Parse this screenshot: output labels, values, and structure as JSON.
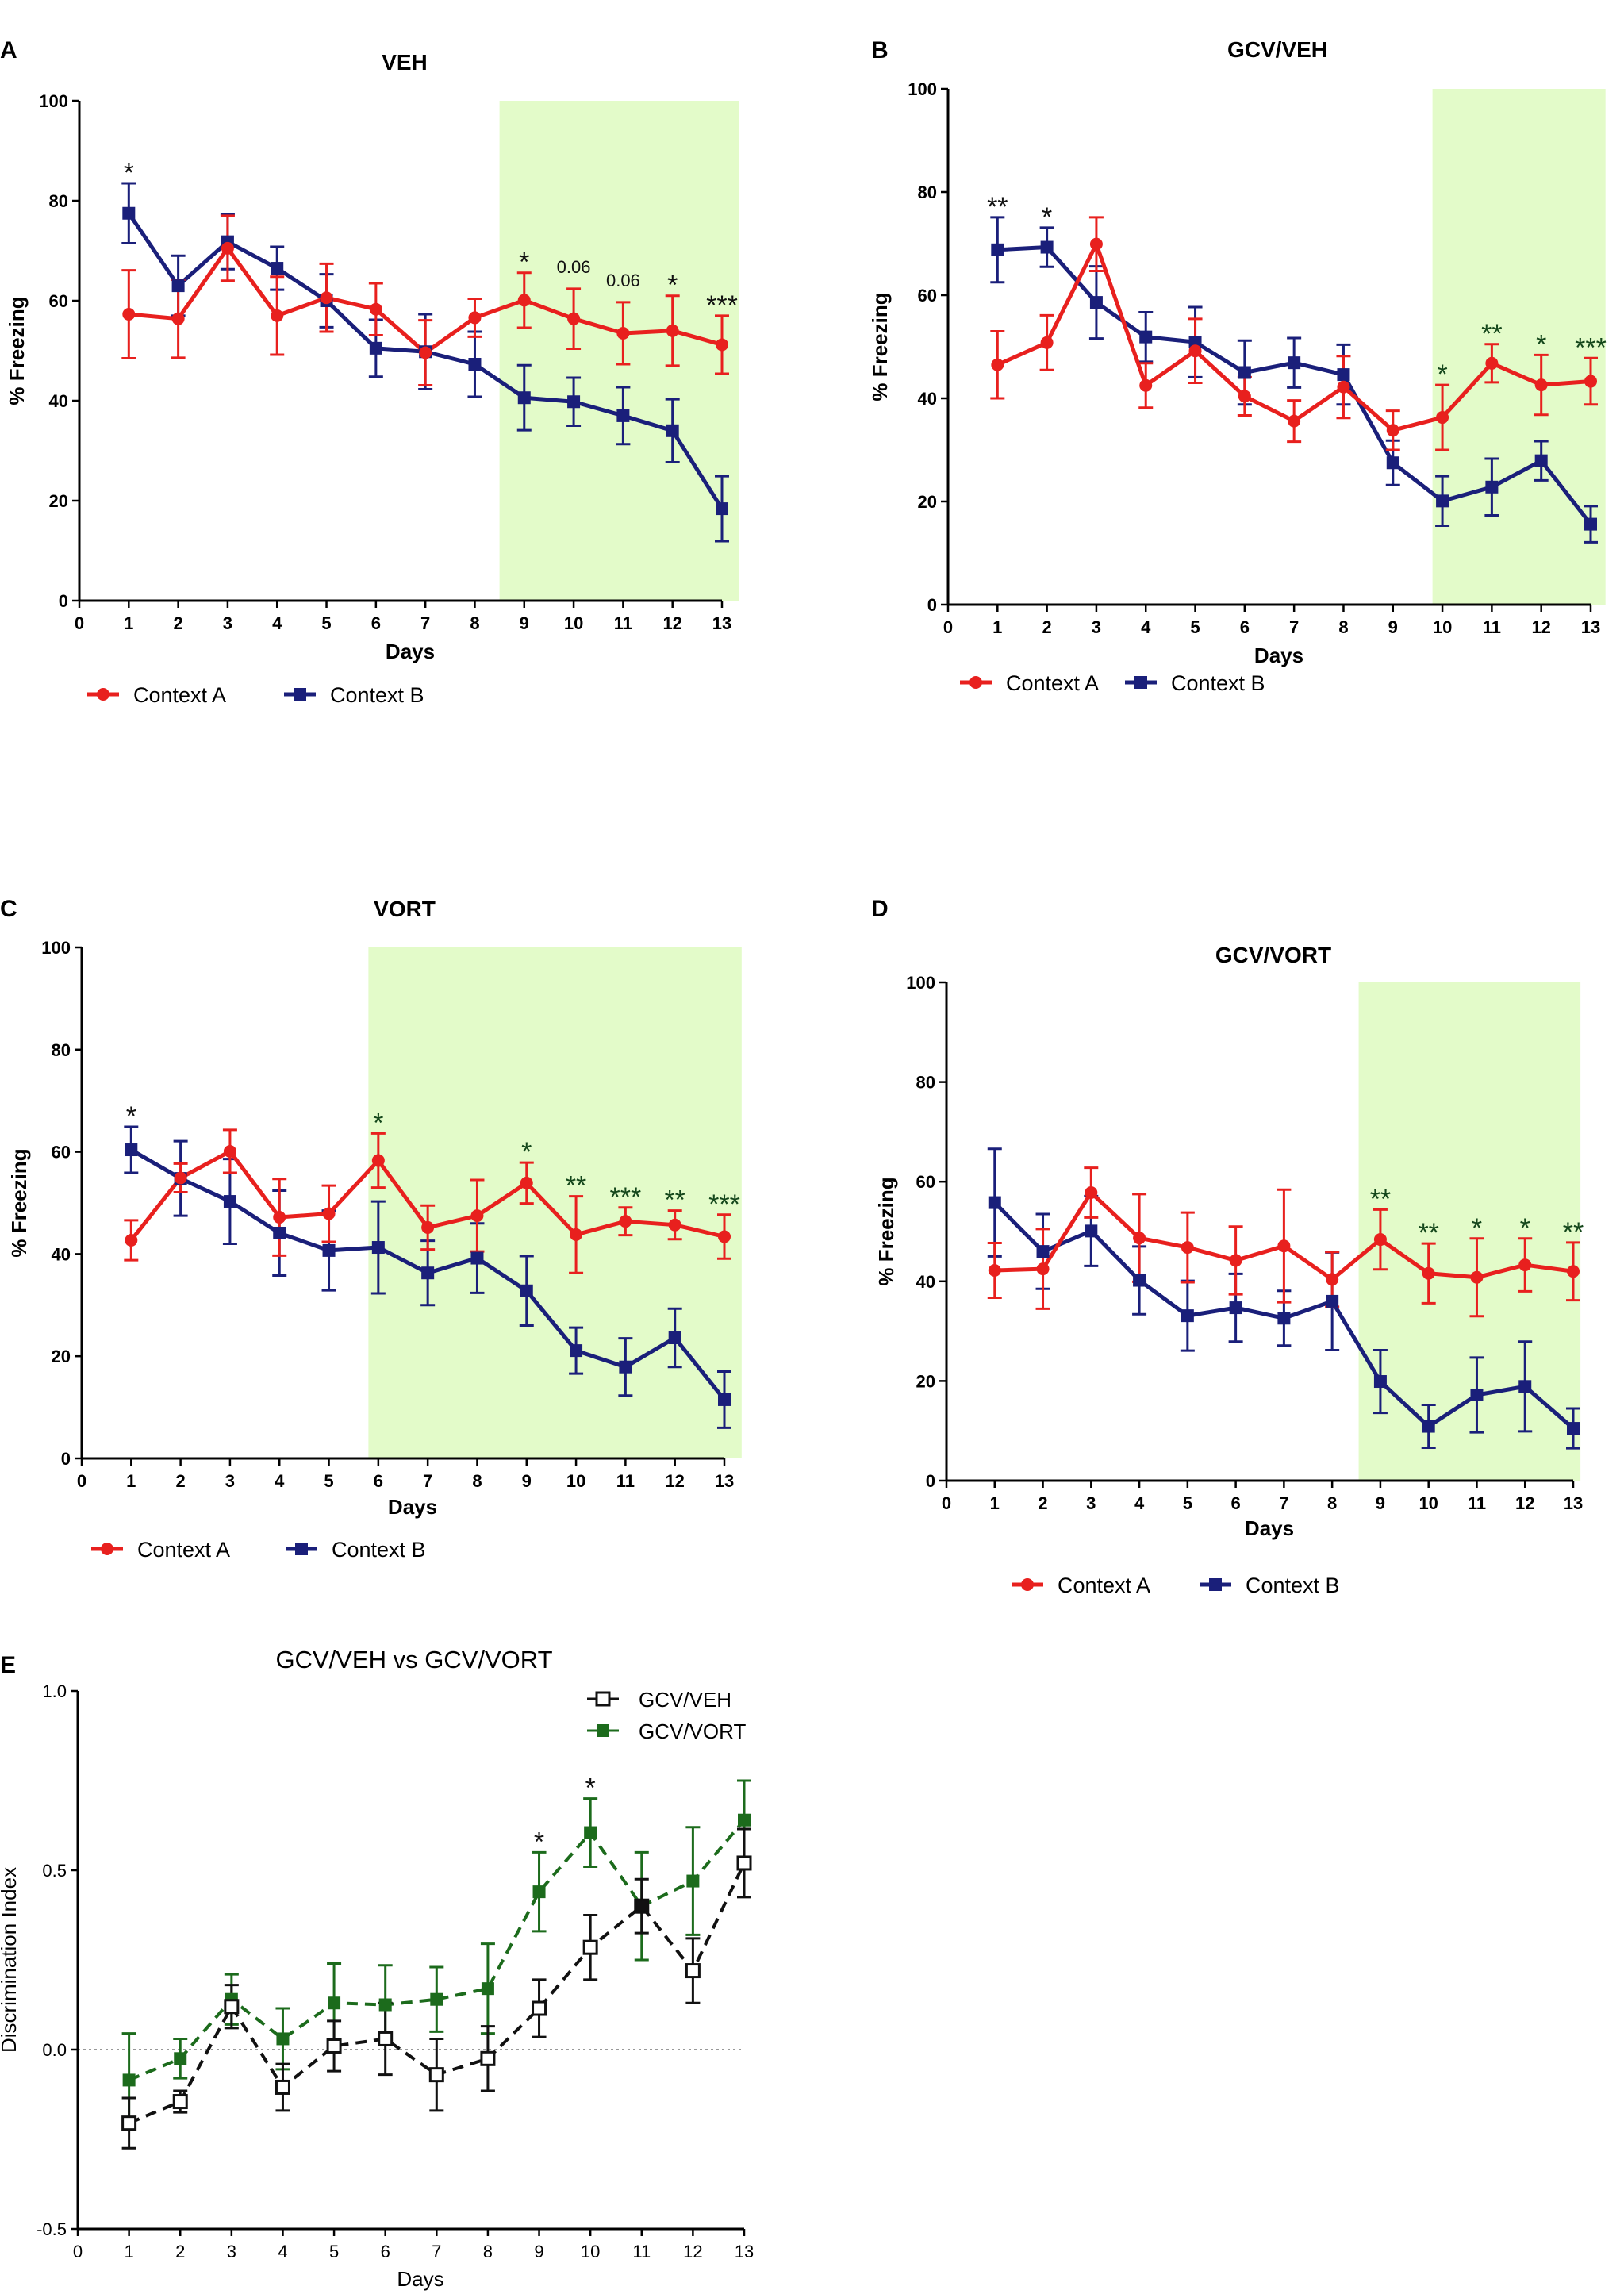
{
  "colors": {
    "context_a": "#e8201e",
    "context_b": "#1a1f7a",
    "shade": "#e3fbc9",
    "gcv_veh": "#111111",
    "gcv_vort": "#1c6b1c",
    "axis": "#000000",
    "sig_text": "#111111",
    "sig_text_green": "#14471b"
  },
  "chart_data": [
    {
      "panel": "A",
      "type": "line",
      "title": "VEH",
      "xlabel": "Days",
      "ylabel": "% Freezing",
      "xlim": [
        0,
        13
      ],
      "ylim": [
        0,
        100
      ],
      "x_ticks": [
        "0",
        "1",
        "2",
        "3",
        "4",
        "5",
        "6",
        "7",
        "8",
        "9",
        "10",
        "11",
        "12",
        "13"
      ],
      "y_ticks": [
        "0",
        "20",
        "40",
        "60",
        "80",
        "100"
      ],
      "shaded_range": [
        8.5,
        13.35
      ],
      "legend": [
        "Context A",
        "Context B"
      ],
      "x": [
        1,
        2,
        3,
        4,
        5,
        6,
        7,
        8,
        9,
        10,
        11,
        12,
        13
      ],
      "series": [
        {
          "name": "Context A",
          "marker": "circle",
          "values": [
            57.3,
            56.4,
            70.5,
            57.0,
            60.6,
            58.3,
            49.6,
            56.6,
            60.1,
            56.4,
            53.5,
            54.0,
            51.2
          ],
          "errors": [
            8.8,
            7.8,
            6.5,
            7.8,
            6.8,
            5.2,
            6.5,
            3.8,
            5.5,
            6.0,
            6.2,
            7.0,
            5.8
          ]
        },
        {
          "name": "Context B",
          "marker": "square",
          "values": [
            77.5,
            63.0,
            71.8,
            66.5,
            60.0,
            50.5,
            49.8,
            47.3,
            40.6,
            39.8,
            37.0,
            34.0,
            18.4
          ],
          "errors": [
            6.0,
            6.0,
            5.5,
            4.3,
            5.3,
            5.7,
            7.5,
            6.5,
            6.5,
            4.8,
            5.7,
            6.3,
            6.5
          ]
        }
      ],
      "significance": [
        {
          "day": 1,
          "label": "*",
          "series": "Context B"
        },
        {
          "day": 9,
          "label": "*"
        },
        {
          "day": 10,
          "label": "0.06"
        },
        {
          "day": 11,
          "label": "0.06"
        },
        {
          "day": 12,
          "label": "*"
        },
        {
          "day": 13,
          "label": "***"
        }
      ]
    },
    {
      "panel": "B",
      "type": "line",
      "title": "GCV/VEH",
      "xlabel": "Days",
      "ylabel": "% Freezing",
      "xlim": [
        0,
        13
      ],
      "ylim": [
        0,
        100
      ],
      "x_ticks": [
        "0",
        "1",
        "2",
        "3",
        "4",
        "5",
        "6",
        "7",
        "8",
        "9",
        "10",
        "11",
        "12",
        "13"
      ],
      "y_ticks": [
        "0",
        "20",
        "40",
        "60",
        "80",
        "100"
      ],
      "shaded_range": [
        9.8,
        13.3
      ],
      "legend": [
        "Context A",
        "Context B"
      ],
      "x": [
        1,
        2,
        3,
        4,
        5,
        6,
        7,
        8,
        9,
        10,
        11,
        12,
        13
      ],
      "series": [
        {
          "name": "Context A",
          "marker": "circle",
          "values": [
            46.5,
            50.8,
            69.9,
            42.5,
            49.2,
            40.4,
            35.6,
            42.2,
            33.8,
            36.3,
            46.8,
            42.6,
            43.3
          ],
          "errors": [
            6.5,
            5.3,
            5.2,
            4.3,
            6.2,
            3.7,
            4.0,
            6.0,
            3.8,
            6.3,
            3.7,
            5.8,
            4.5
          ]
        },
        {
          "name": "Context B",
          "marker": "square",
          "values": [
            68.8,
            69.3,
            58.6,
            51.9,
            50.9,
            45.0,
            46.9,
            44.6,
            27.5,
            20.1,
            22.8,
            27.9,
            15.6
          ],
          "errors": [
            6.3,
            3.8,
            7.0,
            4.8,
            6.8,
            6.2,
            4.8,
            5.8,
            4.3,
            4.8,
            5.5,
            3.8,
            3.5
          ]
        }
      ],
      "significance": [
        {
          "day": 1,
          "label": "**"
        },
        {
          "day": 2,
          "label": "*"
        },
        {
          "day": 10,
          "label": "*"
        },
        {
          "day": 11,
          "label": "**"
        },
        {
          "day": 12,
          "label": "*"
        },
        {
          "day": 13,
          "label": "***"
        }
      ]
    },
    {
      "panel": "C",
      "type": "line",
      "title": "VORT",
      "xlabel": "Days",
      "ylabel": "% Freezing",
      "xlim": [
        0,
        13
      ],
      "ylim": [
        0,
        100
      ],
      "x_ticks": [
        "0",
        "1",
        "2",
        "3",
        "4",
        "5",
        "6",
        "7",
        "8",
        "9",
        "10",
        "11",
        "12",
        "13"
      ],
      "y_ticks": [
        "0",
        "20",
        "40",
        "60",
        "80",
        "100"
      ],
      "shaded_range": [
        5.8,
        13.35
      ],
      "legend": [
        "Context A",
        "Context B"
      ],
      "x": [
        1,
        2,
        3,
        4,
        5,
        6,
        7,
        8,
        9,
        10,
        11,
        12,
        13
      ],
      "series": [
        {
          "name": "Context A",
          "marker": "circle",
          "values": [
            42.7,
            54.9,
            60.1,
            47.2,
            47.9,
            58.3,
            45.2,
            47.5,
            53.9,
            43.8,
            46.4,
            45.7,
            43.4
          ],
          "errors": [
            3.9,
            2.8,
            4.2,
            7.5,
            5.5,
            5.3,
            4.3,
            7.0,
            4.0,
            7.5,
            2.7,
            2.8,
            4.3
          ]
        },
        {
          "name": "Context B",
          "marker": "square",
          "values": [
            60.4,
            54.8,
            50.3,
            44.1,
            40.7,
            41.3,
            36.3,
            39.2,
            32.8,
            21.1,
            17.9,
            23.6,
            11.5
          ],
          "errors": [
            4.5,
            7.3,
            8.3,
            8.3,
            7.8,
            9.0,
            6.3,
            6.8,
            6.8,
            4.5,
            5.6,
            5.7,
            5.5
          ]
        }
      ],
      "significance": [
        {
          "day": 1,
          "label": "*"
        },
        {
          "day": 6,
          "label": "*"
        },
        {
          "day": 9,
          "label": "*"
        },
        {
          "day": 10,
          "label": "**"
        },
        {
          "day": 11,
          "label": "***"
        },
        {
          "day": 12,
          "label": "**"
        },
        {
          "day": 13,
          "label": "***"
        }
      ]
    },
    {
      "panel": "D",
      "type": "line",
      "title": "GCV/VORT",
      "xlabel": "Days",
      "ylabel": "% Freezing",
      "xlim": [
        0,
        13
      ],
      "ylim": [
        0,
        100
      ],
      "x_ticks": [
        "0",
        "1",
        "2",
        "3",
        "4",
        "5",
        "6",
        "7",
        "8",
        "9",
        "10",
        "11",
        "12",
        "13"
      ],
      "y_ticks": [
        "0",
        "20",
        "40",
        "60",
        "80",
        "100"
      ],
      "shaded_range": [
        8.55,
        13.15
      ],
      "legend": [
        "Context A",
        "Context B"
      ],
      "x": [
        1,
        2,
        3,
        4,
        5,
        6,
        7,
        8,
        9,
        10,
        11,
        12,
        13
      ],
      "series": [
        {
          "name": "Context A",
          "marker": "circle",
          "values": [
            42.2,
            42.5,
            57.8,
            48.7,
            46.8,
            44.2,
            47.1,
            40.4,
            48.4,
            41.6,
            40.8,
            43.3,
            42.0
          ],
          "errors": [
            5.5,
            8.0,
            5.0,
            8.8,
            7.0,
            6.8,
            11.3,
            5.5,
            6.0,
            6.0,
            7.8,
            5.3,
            5.8
          ]
        },
        {
          "name": "Context B",
          "marker": "square",
          "values": [
            55.8,
            46.0,
            50.1,
            40.2,
            33.1,
            34.7,
            32.6,
            36.0,
            19.9,
            10.9,
            17.2,
            18.9,
            10.5
          ],
          "errors": [
            10.8,
            7.5,
            7.0,
            6.8,
            7.0,
            6.8,
            5.5,
            9.8,
            6.3,
            4.3,
            7.5,
            9.0,
            4.0
          ]
        }
      ],
      "significance": [
        {
          "day": 9,
          "label": "**"
        },
        {
          "day": 10,
          "label": "**"
        },
        {
          "day": 11,
          "label": "*"
        },
        {
          "day": 12,
          "label": "*"
        },
        {
          "day": 13,
          "label": "**"
        }
      ]
    },
    {
      "panel": "E",
      "type": "line",
      "title": "GCV/VEH vs GCV/VORT",
      "xlabel": "Days",
      "ylabel": "Discrimination Index",
      "xlim": [
        0,
        13
      ],
      "ylim": [
        -0.5,
        1.0
      ],
      "x_ticks": [
        "0",
        "1",
        "2",
        "3",
        "4",
        "5",
        "6",
        "7",
        "8",
        "9",
        "10",
        "11",
        "12",
        "13"
      ],
      "y_ticks": [
        "-0.5",
        "0.0",
        "0.5",
        "1.0"
      ],
      "reference_line": 0.0,
      "legend": [
        "GCV/VEH",
        "GCV/VORT"
      ],
      "x": [
        1,
        2,
        3,
        4,
        5,
        6,
        7,
        8,
        9,
        10,
        11,
        12,
        13
      ],
      "series": [
        {
          "name": "GCV/VEH",
          "marker": "open-square",
          "dashed": true,
          "values": [
            -0.205,
            -0.145,
            0.12,
            -0.105,
            0.01,
            0.03,
            -0.07,
            -0.025,
            0.115,
            0.285,
            0.4,
            0.22,
            0.52
          ],
          "errors": [
            0.07,
            0.03,
            0.06,
            0.065,
            0.07,
            0.1,
            0.1,
            0.09,
            0.08,
            0.09,
            0.075,
            0.09,
            0.095
          ]
        },
        {
          "name": "GCV/VORT",
          "marker": "filled-square",
          "dashed": true,
          "values": [
            -0.085,
            -0.025,
            0.14,
            0.03,
            0.13,
            0.125,
            0.14,
            0.17,
            0.44,
            0.605,
            0.4,
            0.47,
            0.64
          ],
          "errors": [
            0.13,
            0.055,
            0.07,
            0.085,
            0.11,
            0.11,
            0.09,
            0.125,
            0.11,
            0.095,
            0.15,
            0.15,
            0.11
          ]
        }
      ],
      "significance": [
        {
          "day": 9,
          "label": "*"
        },
        {
          "day": 10,
          "label": "*"
        }
      ]
    }
  ]
}
